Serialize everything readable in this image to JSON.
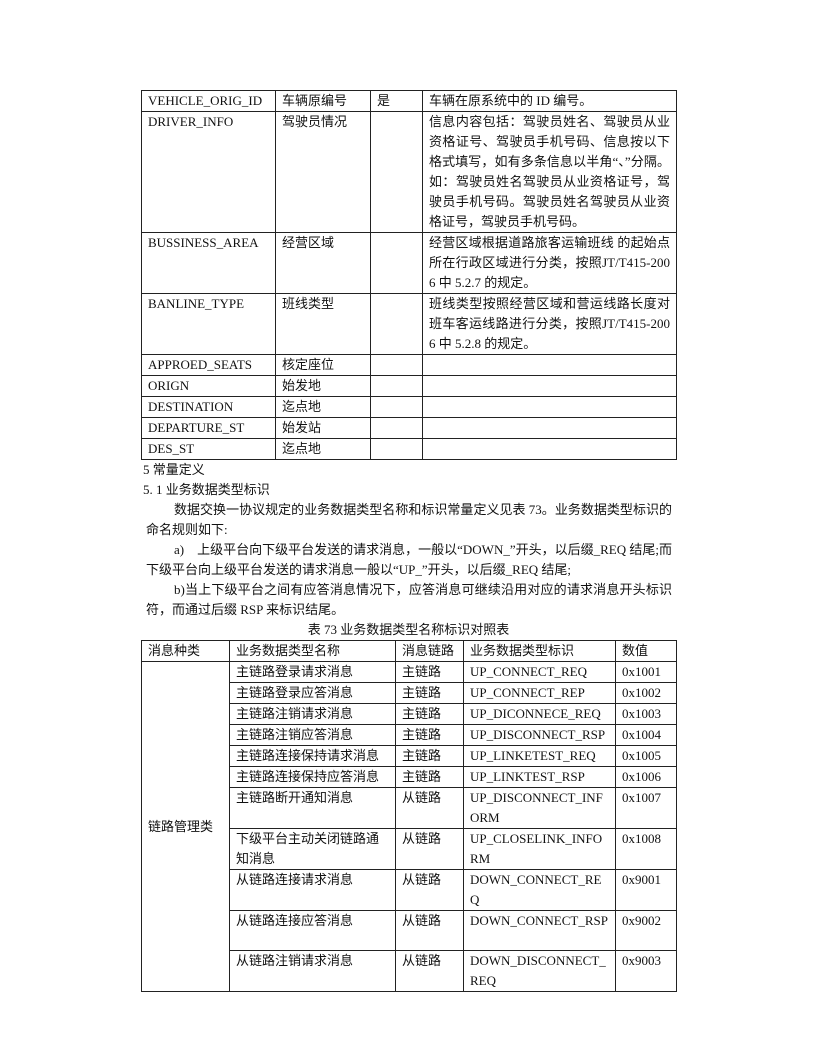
{
  "table1": {
    "rows": [
      {
        "field": "VEHICLE_ORIG_ID",
        "name": "车辆原编号",
        "required": "是",
        "desc": "车辆在原系统中的 ID 编号。"
      },
      {
        "field": "DRIVER_INFO",
        "name": "驾驶员情况",
        "required": "",
        "desc": "信息内容包括：驾驶员姓名、驾驶员从业资格证号、驾驶员手机号码、信息按以下格式填写，如有多条信息以半角“、”分隔。如：驾驶员姓名驾驶员从业资格证号，驾驶员手机号码。驾驶员姓名驾驶员从业资格证号，驾驶员手机号码。"
      },
      {
        "field": "BUSSINESS_AREA",
        "name": "经营区域",
        "required": "",
        "desc": "经营区域根据道路旅客运输班线 的起始点所在行政区域进行分类，按照JT/T415-2006 中 5.2.7 的规定。"
      },
      {
        "field": "BANLINE_TYPE",
        "name": "班线类型",
        "required": "",
        "desc": "班线类型按照经营区域和营运线路长度对班车客运线路进行分类，按照JT/T415-2006 中 5.2.8 的规定。"
      },
      {
        "field": "APPROED_SEATS",
        "name": "核定座位",
        "required": "",
        "desc": ""
      },
      {
        "field": "ORIGN",
        "name": "始发地",
        "required": "",
        "desc": ""
      },
      {
        "field": "DESTINATION",
        "name": "迄点地",
        "required": "",
        "desc": ""
      },
      {
        "field": "DEPARTURE_ST",
        "name": "始发站",
        "required": "",
        "desc": ""
      },
      {
        "field": "DES_ST",
        "name": "迄点地",
        "required": "",
        "desc": ""
      }
    ]
  },
  "text": {
    "section5": "5 常量定义",
    "section5_1": "5. 1 业务数据类型标识",
    "para1": "数据交换一协议规定的业务数据类型名称和标识常量定义见表 73。业务数据类型标识的命名规则如下:",
    "para_a": "a)　上级平台向下级平台发送的请求消息，一般以“DOWN_”开头，以后缀_REQ 结尾;而下级平台向上级平台发送的请求消息一般以“UP_”开头，以后缀_REQ 结尾;",
    "para_b": "b)当上下级平台之间有应答消息情况下，应答消息可继续沿用对应的请求消息开头标识符，而通过后缀 RSP 来标识结尾。",
    "caption": "表 73 业务数据类型名称标识对照表"
  },
  "table2": {
    "headers": [
      "消息种类",
      "业务数据类型名称",
      "消息链路",
      "业务数据类型标识",
      "数值"
    ],
    "category": "链路管理类",
    "rows": [
      {
        "name": "主链路登录请求消息",
        "link": "主链路",
        "id": "UP_CONNECT_REQ",
        "value": "0x1001"
      },
      {
        "name": "主链路登录应答消息",
        "link": "主链路",
        "id": "UP_CONNECT_REP",
        "value": "0x1002"
      },
      {
        "name": "主链路注销请求消息",
        "link": "主链路",
        "id": "UP_DICONNECE_REQ",
        "value": "0x1003"
      },
      {
        "name": "主链路注销应答消息",
        "link": "主链路",
        "id": "UP_DISCONNECT_RSP",
        "value": "0x1004"
      },
      {
        "name": "主链路连接保持请求消息",
        "link": "主链路",
        "id": "UP_LINKETEST_REQ",
        "value": "0x1005"
      },
      {
        "name": "主链路连接保持应答消息",
        "link": "主链路",
        "id": "UP_LINKTEST_RSP",
        "value": "0x1006"
      },
      {
        "name": "主链路断开通知消息",
        "link": "从链路",
        "id": "UP_DISCONNECT_INFORM",
        "value": "0x1007"
      },
      {
        "name": "下级平台主动关闭链路通知消息",
        "link": "从链路",
        "id": "UP_CLOSELINK_INFORM",
        "value": "0x1008"
      },
      {
        "name": "从链路连接请求消息",
        "link": "从链路",
        "id": "DOWN_CONNECT_REQ",
        "value": "0x9001"
      },
      {
        "name": "从链路连接应答消息",
        "link": "从链路",
        "id": "DOWN_CONNECT_RSP",
        "value": "0x9002"
      },
      {
        "name": "从链路注销请求消息",
        "link": "从链路",
        "id": "DOWN_DISCONNECT_REQ",
        "value": "0x9003"
      }
    ]
  }
}
